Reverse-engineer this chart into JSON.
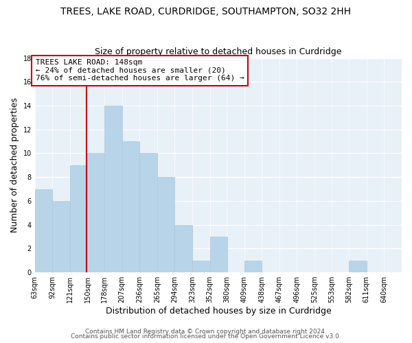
{
  "title": "TREES, LAKE ROAD, CURDRIDGE, SOUTHAMPTON, SO32 2HH",
  "subtitle": "Size of property relative to detached houses in Curdridge",
  "xlabel": "Distribution of detached houses by size in Curdridge",
  "ylabel": "Number of detached properties",
  "bin_labels": [
    "63sqm",
    "92sqm",
    "121sqm",
    "150sqm",
    "178sqm",
    "207sqm",
    "236sqm",
    "265sqm",
    "294sqm",
    "323sqm",
    "352sqm",
    "380sqm",
    "409sqm",
    "438sqm",
    "467sqm",
    "496sqm",
    "525sqm",
    "553sqm",
    "582sqm",
    "611sqm",
    "640sqm"
  ],
  "bin_edges": [
    63,
    92,
    121,
    150,
    178,
    207,
    236,
    265,
    294,
    323,
    352,
    380,
    409,
    438,
    467,
    496,
    525,
    553,
    582,
    611,
    640
  ],
  "counts": [
    7,
    6,
    9,
    10,
    14,
    11,
    10,
    8,
    4,
    1,
    3,
    0,
    1,
    0,
    0,
    0,
    0,
    0,
    1,
    0
  ],
  "bar_color": "#b8d4e8",
  "bar_edge_color": "#aec6dc",
  "property_value": 148,
  "vline_color": "#cc0000",
  "annotation_line1": "TREES LAKE ROAD: 148sqm",
  "annotation_line2": "← 24% of detached houses are smaller (20)",
  "annotation_line3": "76% of semi-detached houses are larger (64) →",
  "annotation_box_color": "#ffffff",
  "annotation_box_edge_color": "#cc0000",
  "ylim": [
    0,
    18
  ],
  "yticks": [
    0,
    2,
    4,
    6,
    8,
    10,
    12,
    14,
    16,
    18
  ],
  "footer_line1": "Contains HM Land Registry data © Crown copyright and database right 2024.",
  "footer_line2": "Contains public sector information licensed under the Open Government Licence v3.0.",
  "background_color": "#ffffff",
  "plot_bg_color": "#e8f0f8",
  "grid_color": "#ffffff",
  "title_fontsize": 10,
  "subtitle_fontsize": 9,
  "axis_label_fontsize": 9,
  "tick_fontsize": 7,
  "footer_fontsize": 6.5,
  "annotation_fontsize": 8
}
